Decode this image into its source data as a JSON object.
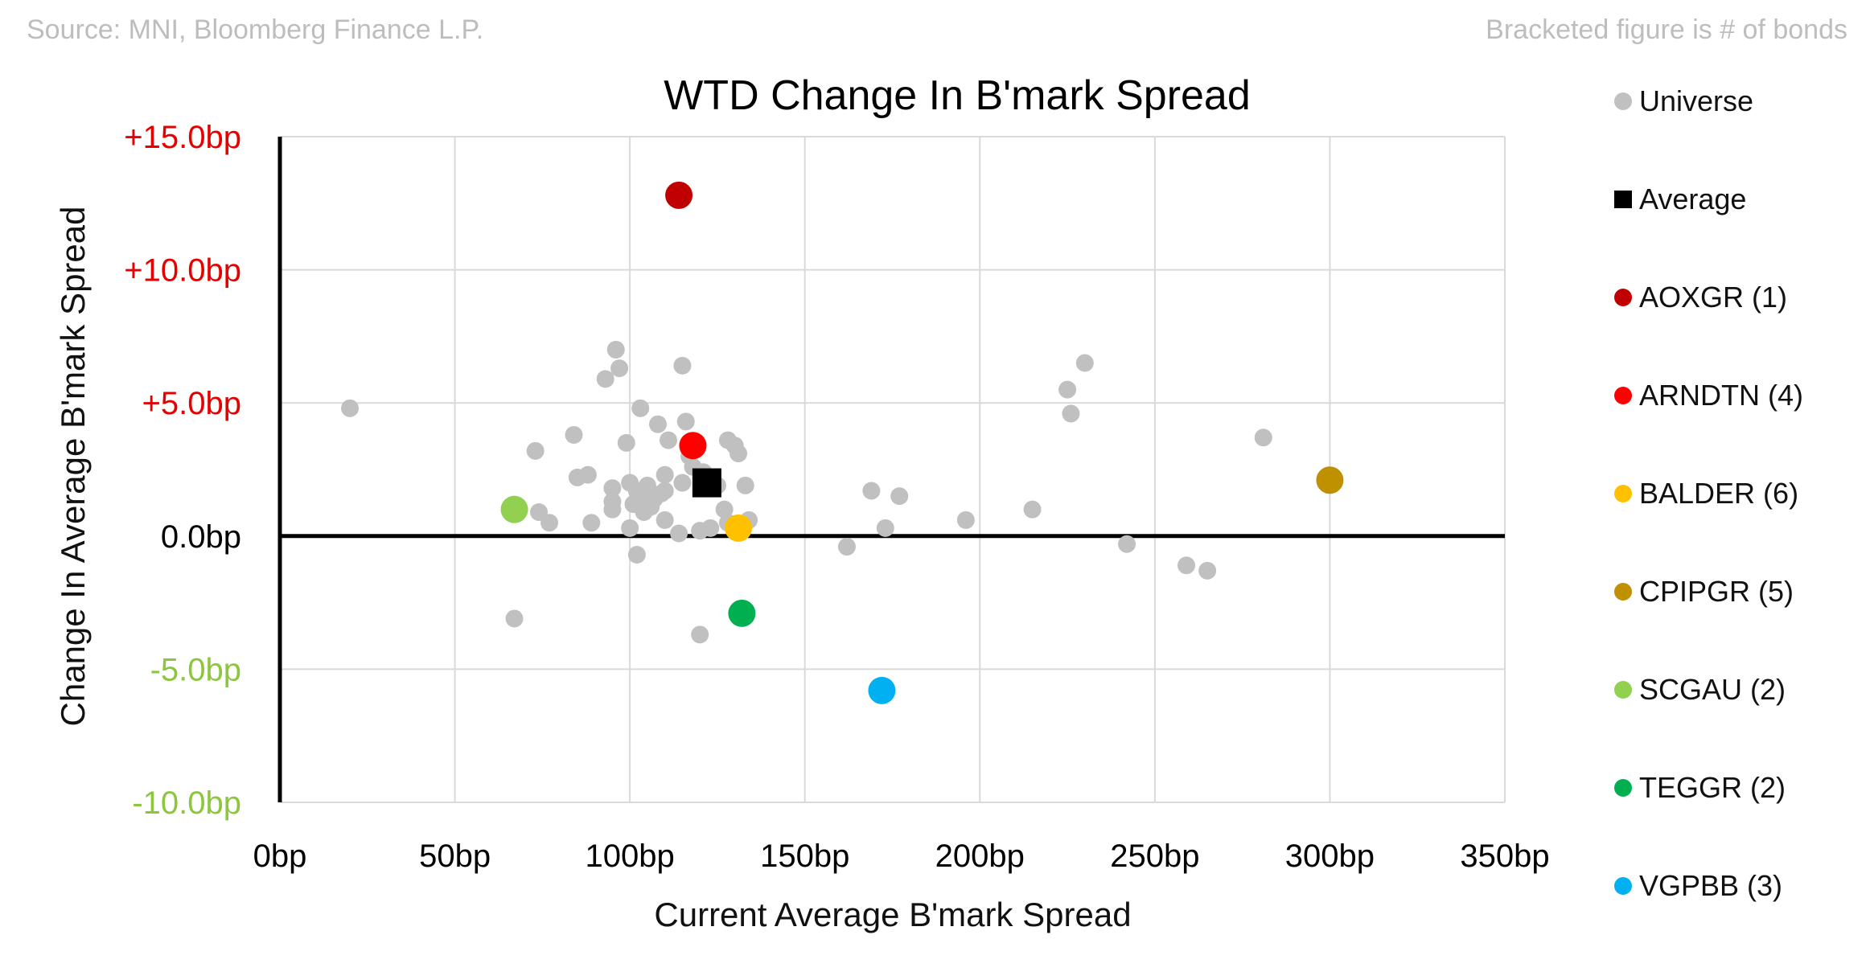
{
  "notes": {
    "source": "Source: MNI, Bloomberg Finance L.P.",
    "bracket": "Bracketed figure is # of bonds"
  },
  "colors": {
    "universe": "#c0c0c0",
    "average": "#000000",
    "positive_tick": "#e60000",
    "negative_tick": "#8cc63f",
    "grid": "#d9d9d9",
    "axis": "#000000"
  },
  "chart_data": {
    "type": "scatter",
    "title": "WTD Change In B'mark Spread",
    "xlabel": "Current Average B'mark Spread",
    "ylabel": "Change In Average B'mark Spread",
    "xlim": [
      0,
      350
    ],
    "ylim": [
      -10,
      15
    ],
    "x_ticks": [
      0,
      50,
      100,
      150,
      200,
      250,
      300,
      350
    ],
    "y_ticks": [
      15,
      10,
      5,
      0,
      -5,
      -10
    ],
    "x_tick_labels": [
      "0bp",
      "50bp",
      "100bp",
      "150bp",
      "200bp",
      "250bp",
      "300bp",
      "350bp"
    ],
    "y_tick_labels": [
      "+15.0bp",
      "+10.0bp",
      "+5.0bp",
      "0.0bp",
      "-5.0bp",
      "-10.0bp"
    ],
    "grid": true,
    "legend_position": "right",
    "universe": {
      "name": "Universe",
      "points": [
        [
          20,
          4.8
        ],
        [
          67,
          -3.1
        ],
        [
          73,
          3.2
        ],
        [
          74,
          0.9
        ],
        [
          77,
          0.5
        ],
        [
          84,
          3.8
        ],
        [
          85,
          2.2
        ],
        [
          88,
          2.3
        ],
        [
          89,
          0.5
        ],
        [
          93,
          5.9
        ],
        [
          95,
          1.8
        ],
        [
          95,
          1.3
        ],
        [
          95,
          1.0
        ],
        [
          96,
          7.0
        ],
        [
          97,
          6.3
        ],
        [
          99,
          3.5
        ],
        [
          100,
          2.0
        ],
        [
          100,
          0.3
        ],
        [
          101,
          1.2
        ],
        [
          102,
          -0.7
        ],
        [
          102,
          1.7
        ],
        [
          103,
          4.8
        ],
        [
          104,
          0.9
        ],
        [
          105,
          1.5
        ],
        [
          105,
          1.9
        ],
        [
          106,
          1.1
        ],
        [
          107,
          1.4
        ],
        [
          108,
          4.2
        ],
        [
          109,
          1.6
        ],
        [
          110,
          2.3
        ],
        [
          110,
          1.7
        ],
        [
          110,
          0.6
        ],
        [
          111,
          3.6
        ],
        [
          114,
          0.1
        ],
        [
          115,
          6.4
        ],
        [
          115,
          2.0
        ],
        [
          116,
          4.3
        ],
        [
          117,
          3.0
        ],
        [
          118,
          2.6
        ],
        [
          120,
          0.2
        ],
        [
          120,
          -3.7
        ],
        [
          121,
          2.4
        ],
        [
          122,
          2.2
        ],
        [
          123,
          0.3
        ],
        [
          125,
          1.9
        ],
        [
          127,
          1.0
        ],
        [
          128,
          0.5
        ],
        [
          128,
          3.6
        ],
        [
          130,
          3.4
        ],
        [
          131,
          3.1
        ],
        [
          133,
          1.9
        ],
        [
          134,
          0.6
        ],
        [
          162,
          -0.4
        ],
        [
          169,
          1.7
        ],
        [
          173,
          0.3
        ],
        [
          177,
          1.5
        ],
        [
          196,
          0.6
        ],
        [
          215,
          1.0
        ],
        [
          225,
          5.5
        ],
        [
          226,
          4.6
        ],
        [
          230,
          6.5
        ],
        [
          242,
          -0.3
        ],
        [
          259,
          -1.1
        ],
        [
          265,
          -1.3
        ],
        [
          281,
          3.7
        ]
      ]
    },
    "average": {
      "name": "Average",
      "x": 122,
      "y": 2.0
    },
    "series": [
      {
        "name": "AOXGR",
        "count": "(1)",
        "color": "#c00000",
        "x": 114,
        "y": 12.8
      },
      {
        "name": "ARNDTN",
        "count": "(4)",
        "color": "#ff0000",
        "x": 118,
        "y": 3.4
      },
      {
        "name": "BALDER",
        "count": "(6)",
        "color": "#ffc000",
        "x": 131,
        "y": 0.3
      },
      {
        "name": "CPIPGR",
        "count": "(5)",
        "color": "#bf9000",
        "x": 300,
        "y": 2.1
      },
      {
        "name": "SCGAU",
        "count": "(2)",
        "color": "#92d050",
        "x": 67,
        "y": 1.0
      },
      {
        "name": "TEGGR",
        "count": "(2)",
        "color": "#00b050",
        "x": 132,
        "y": -2.9
      },
      {
        "name": "VGPBB",
        "count": "(3)",
        "color": "#00b0f0",
        "x": 172,
        "y": -5.8
      }
    ]
  }
}
